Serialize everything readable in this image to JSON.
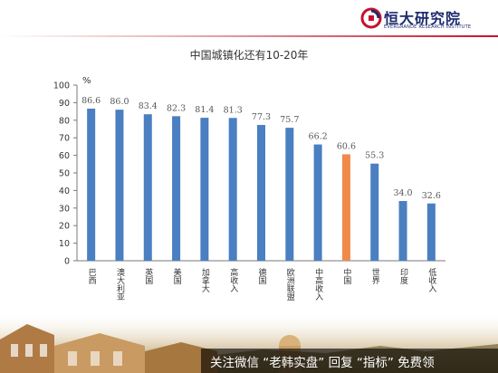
{
  "header": {
    "logo_text": "恒大研究院",
    "logo_subtext": "EVERGRANDE RESEARCH INSTITUTE",
    "logo_icon": "evergrande-logo-icon"
  },
  "chart_data": {
    "type": "bar",
    "title": "中国城镇化还有10-20年",
    "ylabel": "%",
    "ylim": [
      0,
      100
    ],
    "yticks": [
      0,
      10,
      20,
      30,
      40,
      50,
      60,
      70,
      80,
      90,
      100
    ],
    "grid": false,
    "categories": [
      "巴西",
      "澳大利亚",
      "英国",
      "美国",
      "加拿大",
      "高收入",
      "德国",
      "欧洲联盟",
      "中高收入",
      "中国",
      "世界",
      "印度",
      "低收入"
    ],
    "values": [
      86.6,
      86.0,
      83.4,
      82.3,
      81.4,
      81.3,
      77.3,
      75.7,
      66.2,
      60.6,
      55.3,
      34.0,
      32.6
    ],
    "value_labels": [
      "86.6",
      "86.0",
      "83.4",
      "82.3",
      "81.4",
      "81.3",
      "77.3",
      "75.7",
      "66.2",
      "60.6",
      "55.3",
      "34.0",
      "32.6"
    ],
    "highlight_category": "中国",
    "colors": {
      "bar": "#4a7fc1",
      "highlight": "#f0894a",
      "axis": "#7a7a7a",
      "label": "#555555"
    }
  },
  "footer": {
    "banner_text": "关注微信 “老韩实盘” 回复 “指标” 免费领"
  }
}
